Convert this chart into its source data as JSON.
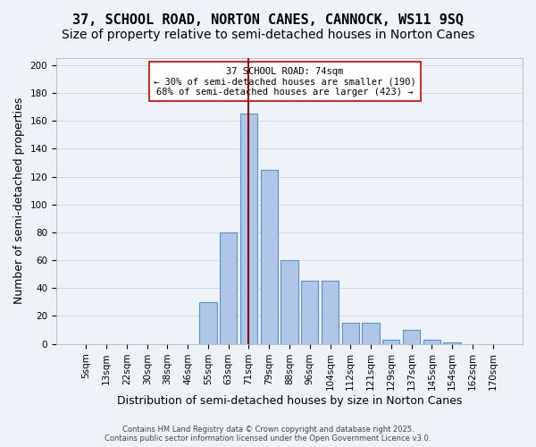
{
  "title_line1": "37, SCHOOL ROAD, NORTON CANES, CANNOCK, WS11 9SQ",
  "title_line2": "Size of property relative to semi-detached houses in Norton Canes",
  "xlabel": "Distribution of semi-detached houses by size in Norton Canes",
  "ylabel": "Number of semi-detached properties",
  "footer": "Contains HM Land Registry data © Crown copyright and database right 2025.\nContains public sector information licensed under the Open Government Licence v3.0.",
  "annotation_title": "37 SCHOOL ROAD: 74sqm",
  "annotation_line1": "← 30% of semi-detached houses are smaller (190)",
  "annotation_line2": "68% of semi-detached houses are larger (423) →",
  "bar_color": "#aec6e8",
  "bar_edge_color": "#5b8fc7",
  "subject_line_color": "#8b0000",
  "annotation_box_edge_color": "#cc0000",
  "annotation_box_face_color": "#ffffff",
  "background_color": "#eef2f9",
  "categories": [
    "5sqm",
    "13sqm",
    "22sqm",
    "30sqm",
    "38sqm",
    "46sqm",
    "55sqm",
    "63sqm",
    "71sqm",
    "79sqm",
    "88sqm",
    "96sqm",
    "104sqm",
    "112sqm",
    "121sqm",
    "129sqm",
    "137sqm",
    "145sqm",
    "154sqm",
    "162sqm",
    "170sqm"
  ],
  "values": [
    0,
    0,
    0,
    0,
    0,
    0,
    30,
    80,
    165,
    125,
    60,
    45,
    45,
    15,
    15,
    3,
    10,
    3,
    1,
    0,
    0
  ],
  "ylim": [
    0,
    205
  ],
  "yticks": [
    0,
    20,
    40,
    60,
    80,
    100,
    120,
    140,
    160,
    180,
    200
  ],
  "subject_bin_index": 8,
  "grid_color": "#cccccc",
  "title_fontsize": 11,
  "subtitle_fontsize": 10,
  "axis_label_fontsize": 9,
  "tick_fontsize": 7.5
}
